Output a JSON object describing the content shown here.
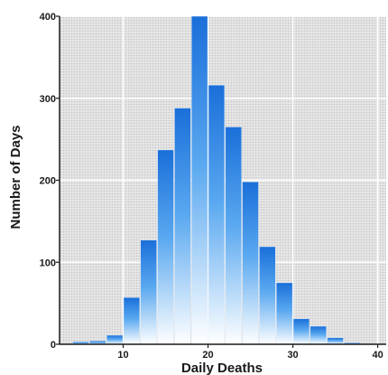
{
  "chart_data": {
    "type": "bar",
    "title": "",
    "xlabel": "Daily Deaths",
    "ylabel": "Number of Days",
    "xlim": [
      2.5,
      41
    ],
    "ylim": [
      0,
      400
    ],
    "bin_width": 2,
    "x_ticks": [
      10,
      20,
      30,
      40
    ],
    "y_ticks": [
      0,
      100,
      200,
      300,
      400
    ],
    "x": [
      5,
      7,
      9,
      11,
      13,
      15,
      17,
      19,
      21,
      23,
      25,
      27,
      29,
      31,
      33,
      35,
      37
    ],
    "values": [
      3,
      4,
      11,
      57,
      127,
      237,
      288,
      400,
      316,
      265,
      198,
      119,
      75,
      31,
      22,
      8,
      2
    ],
    "grid": true,
    "legend": "none",
    "colors": {
      "bar_top": "#1a6fd9",
      "bar_mid": "#59a8f0",
      "bar_bottom": "#ffffff",
      "plot_background": "#dcdcdc",
      "grid": "#ffffff",
      "axis": "#1a1a1a"
    }
  }
}
